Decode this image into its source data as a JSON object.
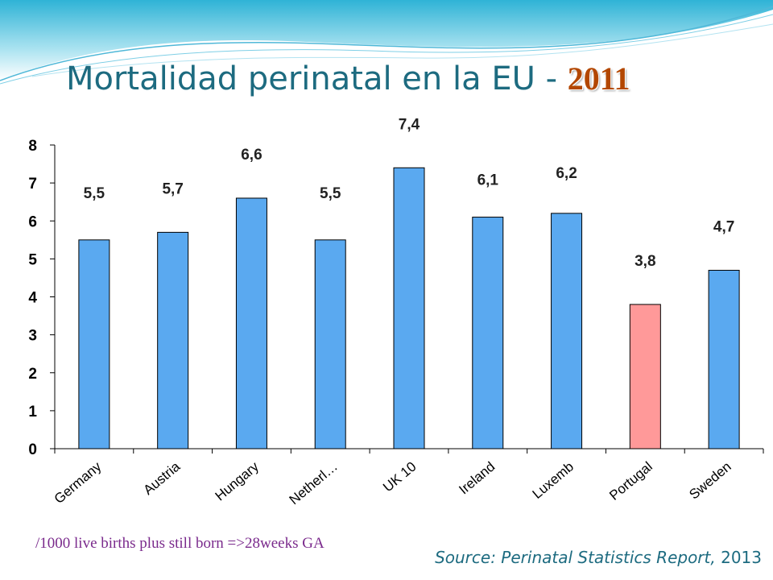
{
  "title": {
    "main": "Mortalidad perinatal en la EU - ",
    "year": "2011"
  },
  "footnote": "/1000 live births plus still born =>28weeks GA",
  "source": {
    "label": "Source: Perinatal Statistics Report,",
    "year": " 2013"
  },
  "colors": {
    "bar": "#5aa9f0",
    "bar_highlight": "#ff9999",
    "title": "#1d6b80",
    "title_year": "#b34700",
    "footnote": "#7a2a8c"
  },
  "chart_data": {
    "type": "bar",
    "categories": [
      "Germany",
      "Austria",
      "Hungary",
      "Netherl…",
      "UK 10",
      "Ireland",
      "Luxemb",
      "Portugal",
      "Sweden"
    ],
    "values": [
      5.5,
      5.7,
      6.6,
      5.5,
      7.4,
      6.1,
      6.2,
      3.8,
      4.7
    ],
    "data_labels": [
      "5,5",
      "5,7",
      "6,6",
      "5,5",
      "7,4",
      "6,1",
      "6,2",
      "3,8",
      "4,7"
    ],
    "highlight_category": "Portugal",
    "ylim": [
      0,
      8
    ],
    "yticks": [
      0,
      1,
      2,
      3,
      4,
      5,
      6,
      7,
      8
    ],
    "grid": false,
    "xlabel": "",
    "ylabel": ""
  }
}
